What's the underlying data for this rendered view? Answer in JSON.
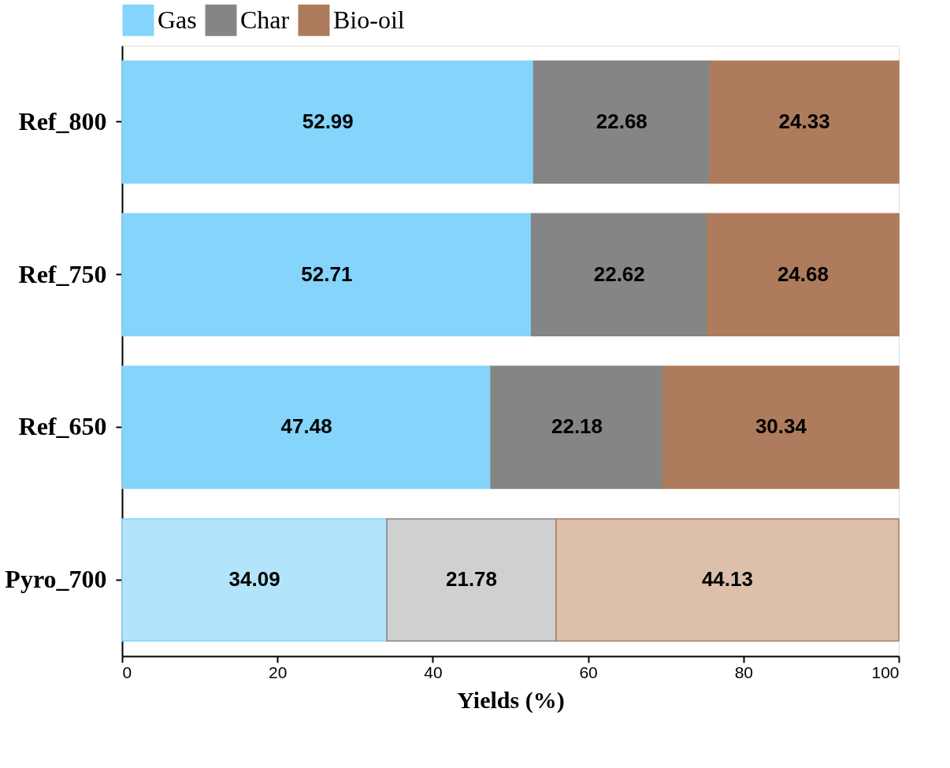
{
  "chart_data": {
    "type": "bar",
    "orientation": "horizontal",
    "stacked": true,
    "xlabel": "Yields (%)",
    "categories": [
      "Ref_800",
      "Ref_750",
      "Ref_650",
      "Pyro_700"
    ],
    "series": [
      {
        "name": "Gas",
        "color": "#84d4fb",
        "colors": [
          "#84d4fb",
          "#84d4fb",
          "#84d4fb",
          "#b3e4fb"
        ],
        "values": [
          52.99,
          52.71,
          47.48,
          34.09
        ]
      },
      {
        "name": "Char",
        "color": "#858585",
        "colors": [
          "#858585",
          "#858585",
          "#858585",
          "#d0d0d0"
        ],
        "values": [
          22.68,
          22.62,
          22.18,
          21.78
        ]
      },
      {
        "name": "Bio-oil",
        "color": "#ae7c5c",
        "colors": [
          "#ae7c5c",
          "#ae7c5c",
          "#ae7c5c",
          "#dcc0ac"
        ],
        "values": [
          24.33,
          24.68,
          30.34,
          44.13
        ]
      }
    ],
    "xlim": [
      0,
      100
    ],
    "xticks": [
      0,
      20,
      40,
      60,
      80,
      100
    ],
    "data_labels": true,
    "legend": "top",
    "grid": false
  }
}
